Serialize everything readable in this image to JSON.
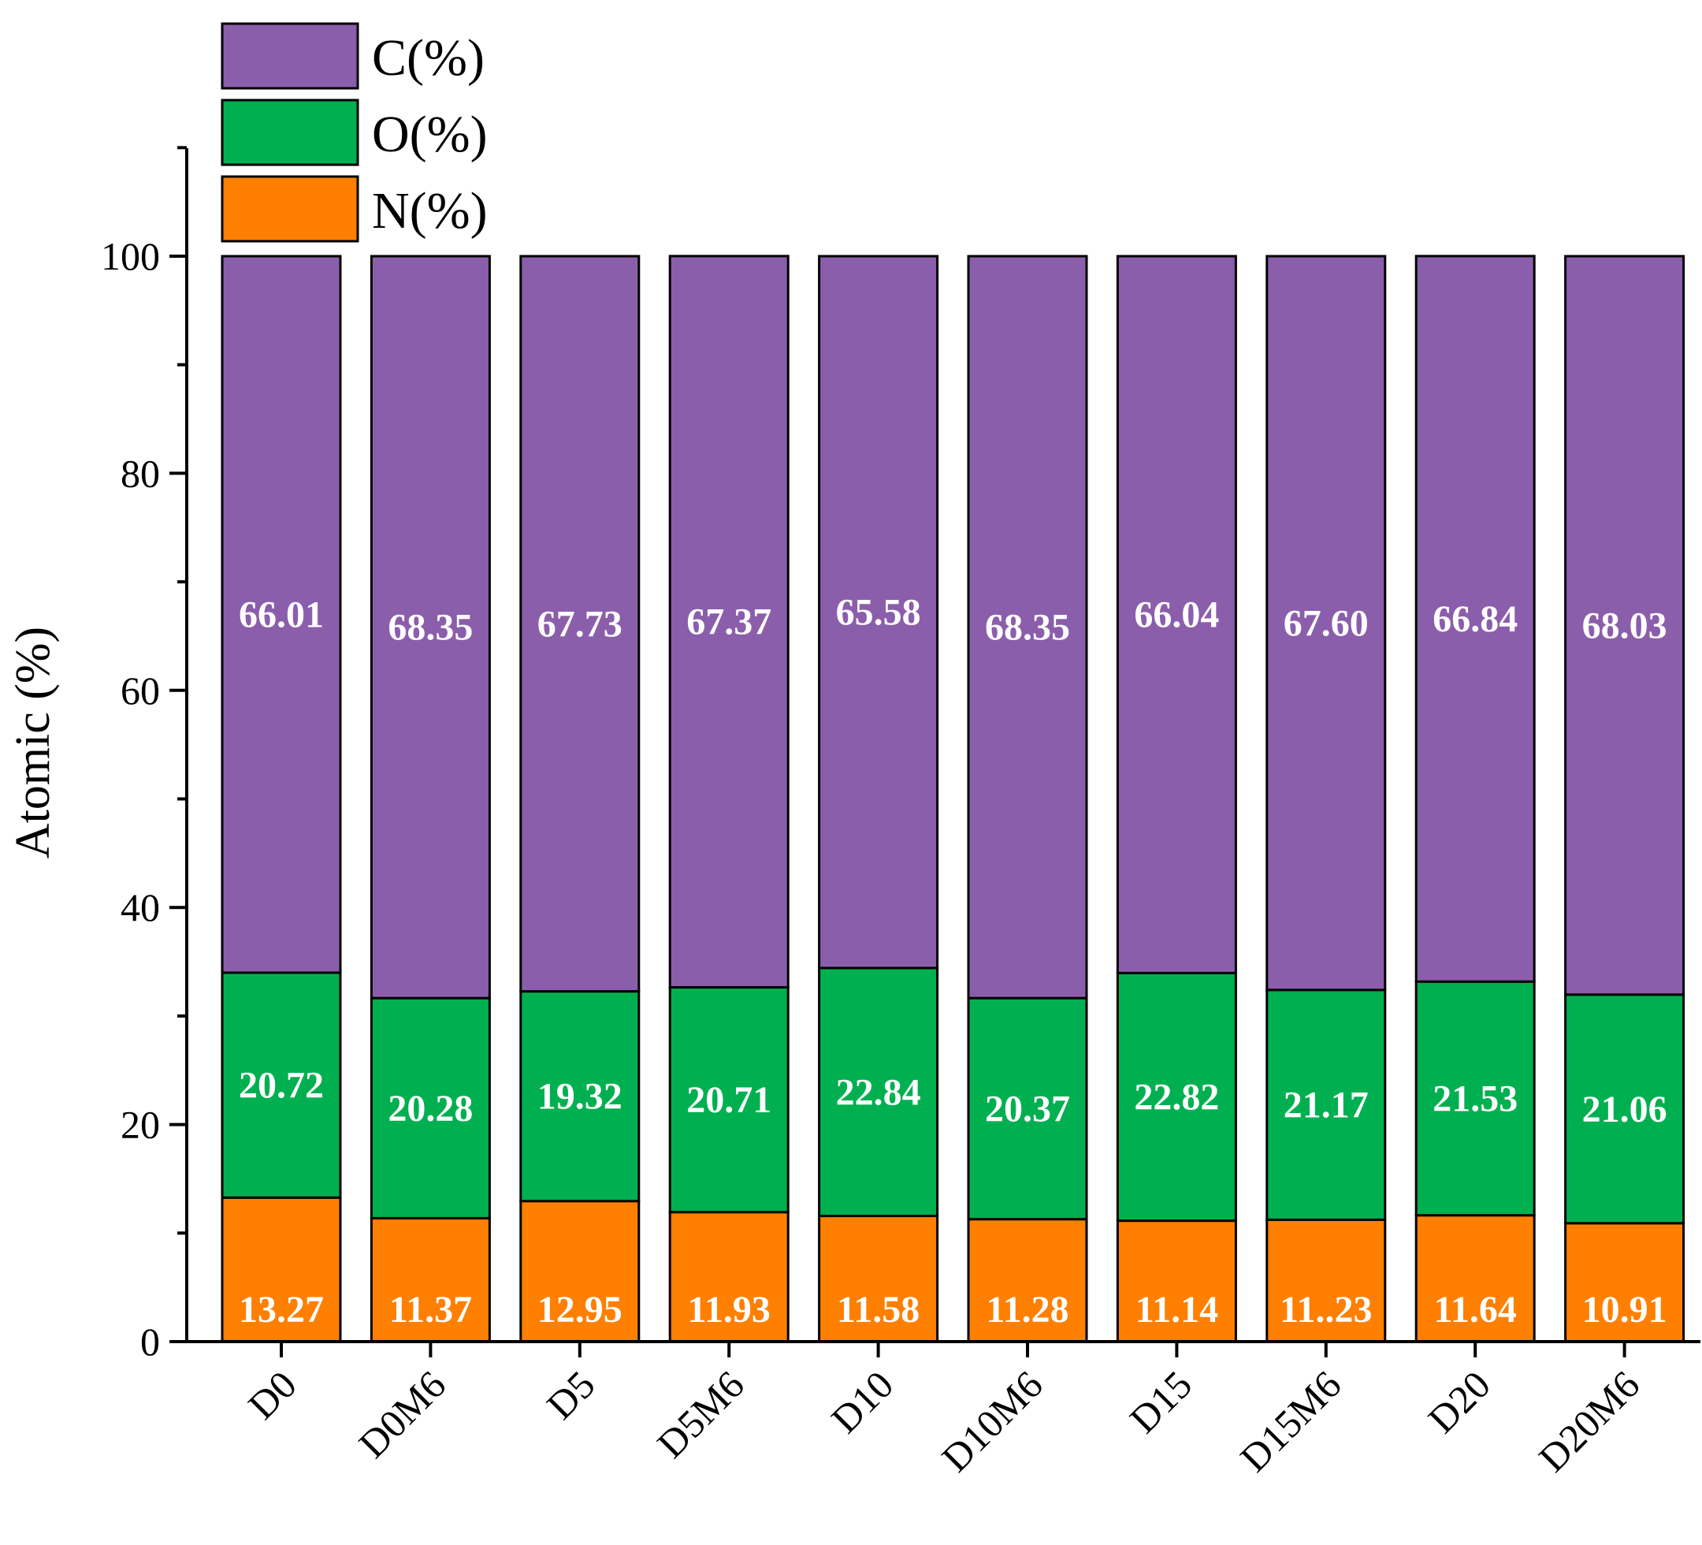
{
  "chart_data": {
    "type": "bar",
    "stacked": true,
    "title": "",
    "xlabel": "",
    "ylabel": "Atomic (%)",
    "ylim": [
      0,
      110
    ],
    "yticks": [
      "0",
      "20",
      "40",
      "60",
      "80",
      "100"
    ],
    "grid": false,
    "legend_position": "top-left",
    "categories": [
      "D0",
      "D0M6",
      "D5",
      "D5M6",
      "D10",
      "D10M6",
      "D15",
      "D15M6",
      "D20",
      "D20M6"
    ],
    "series": [
      {
        "name": "N(%)",
        "color": "#ff7f00",
        "label_color": "#ffffff",
        "values": [
          13.27,
          11.37,
          12.95,
          11.93,
          11.58,
          11.28,
          11.14,
          11.23,
          11.64,
          10.91
        ],
        "labels": [
          "13.27",
          "11.37",
          "12.95",
          "11.93",
          "11.58",
          "11.28",
          "11.14",
          "11..23",
          "11.64",
          "10.91"
        ]
      },
      {
        "name": "O(%)",
        "color": "#00b050",
        "label_color": "#ffffff",
        "values": [
          20.72,
          20.28,
          19.32,
          20.71,
          22.84,
          20.37,
          22.82,
          21.17,
          21.53,
          21.06
        ],
        "labels": [
          "20.72",
          "20.28",
          "19.32",
          "20.71",
          "22.84",
          "20.37",
          "22.82",
          "21.17",
          "21.53",
          "21.06"
        ]
      },
      {
        "name": "C(%)",
        "color": "#8b5eab",
        "label_color": "#ffffff",
        "values": [
          66.01,
          68.35,
          67.73,
          67.37,
          65.58,
          68.35,
          66.04,
          67.6,
          66.84,
          68.03
        ],
        "labels": [
          "66.01",
          "68.35",
          "67.73",
          "67.37",
          "65.58",
          "68.35",
          "66.04",
          "67.60",
          "66.84",
          "68.03"
        ]
      }
    ],
    "legend_order": [
      "C(%)",
      "O(%)",
      "N(%)"
    ]
  }
}
